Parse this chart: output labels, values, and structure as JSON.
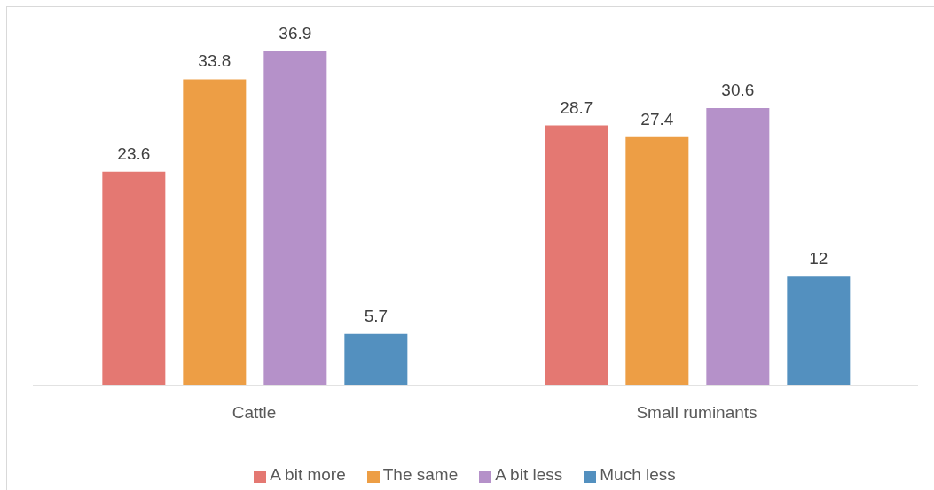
{
  "chart_data": {
    "type": "bar",
    "categories": [
      "Cattle",
      "Small ruminants"
    ],
    "series": [
      {
        "name": "A bit more",
        "color": "#e47872",
        "values": [
          23.6,
          28.7
        ]
      },
      {
        "name": "The same",
        "color": "#ed9e45",
        "values": [
          33.8,
          27.4
        ]
      },
      {
        "name": "A bit less",
        "color": "#b591c9",
        "values": [
          36.9,
          30.6
        ]
      },
      {
        "name": "Much less",
        "color": "#5390bf",
        "values": [
          5.7,
          12
        ]
      }
    ],
    "data_labels": true,
    "legend": "bottom"
  }
}
